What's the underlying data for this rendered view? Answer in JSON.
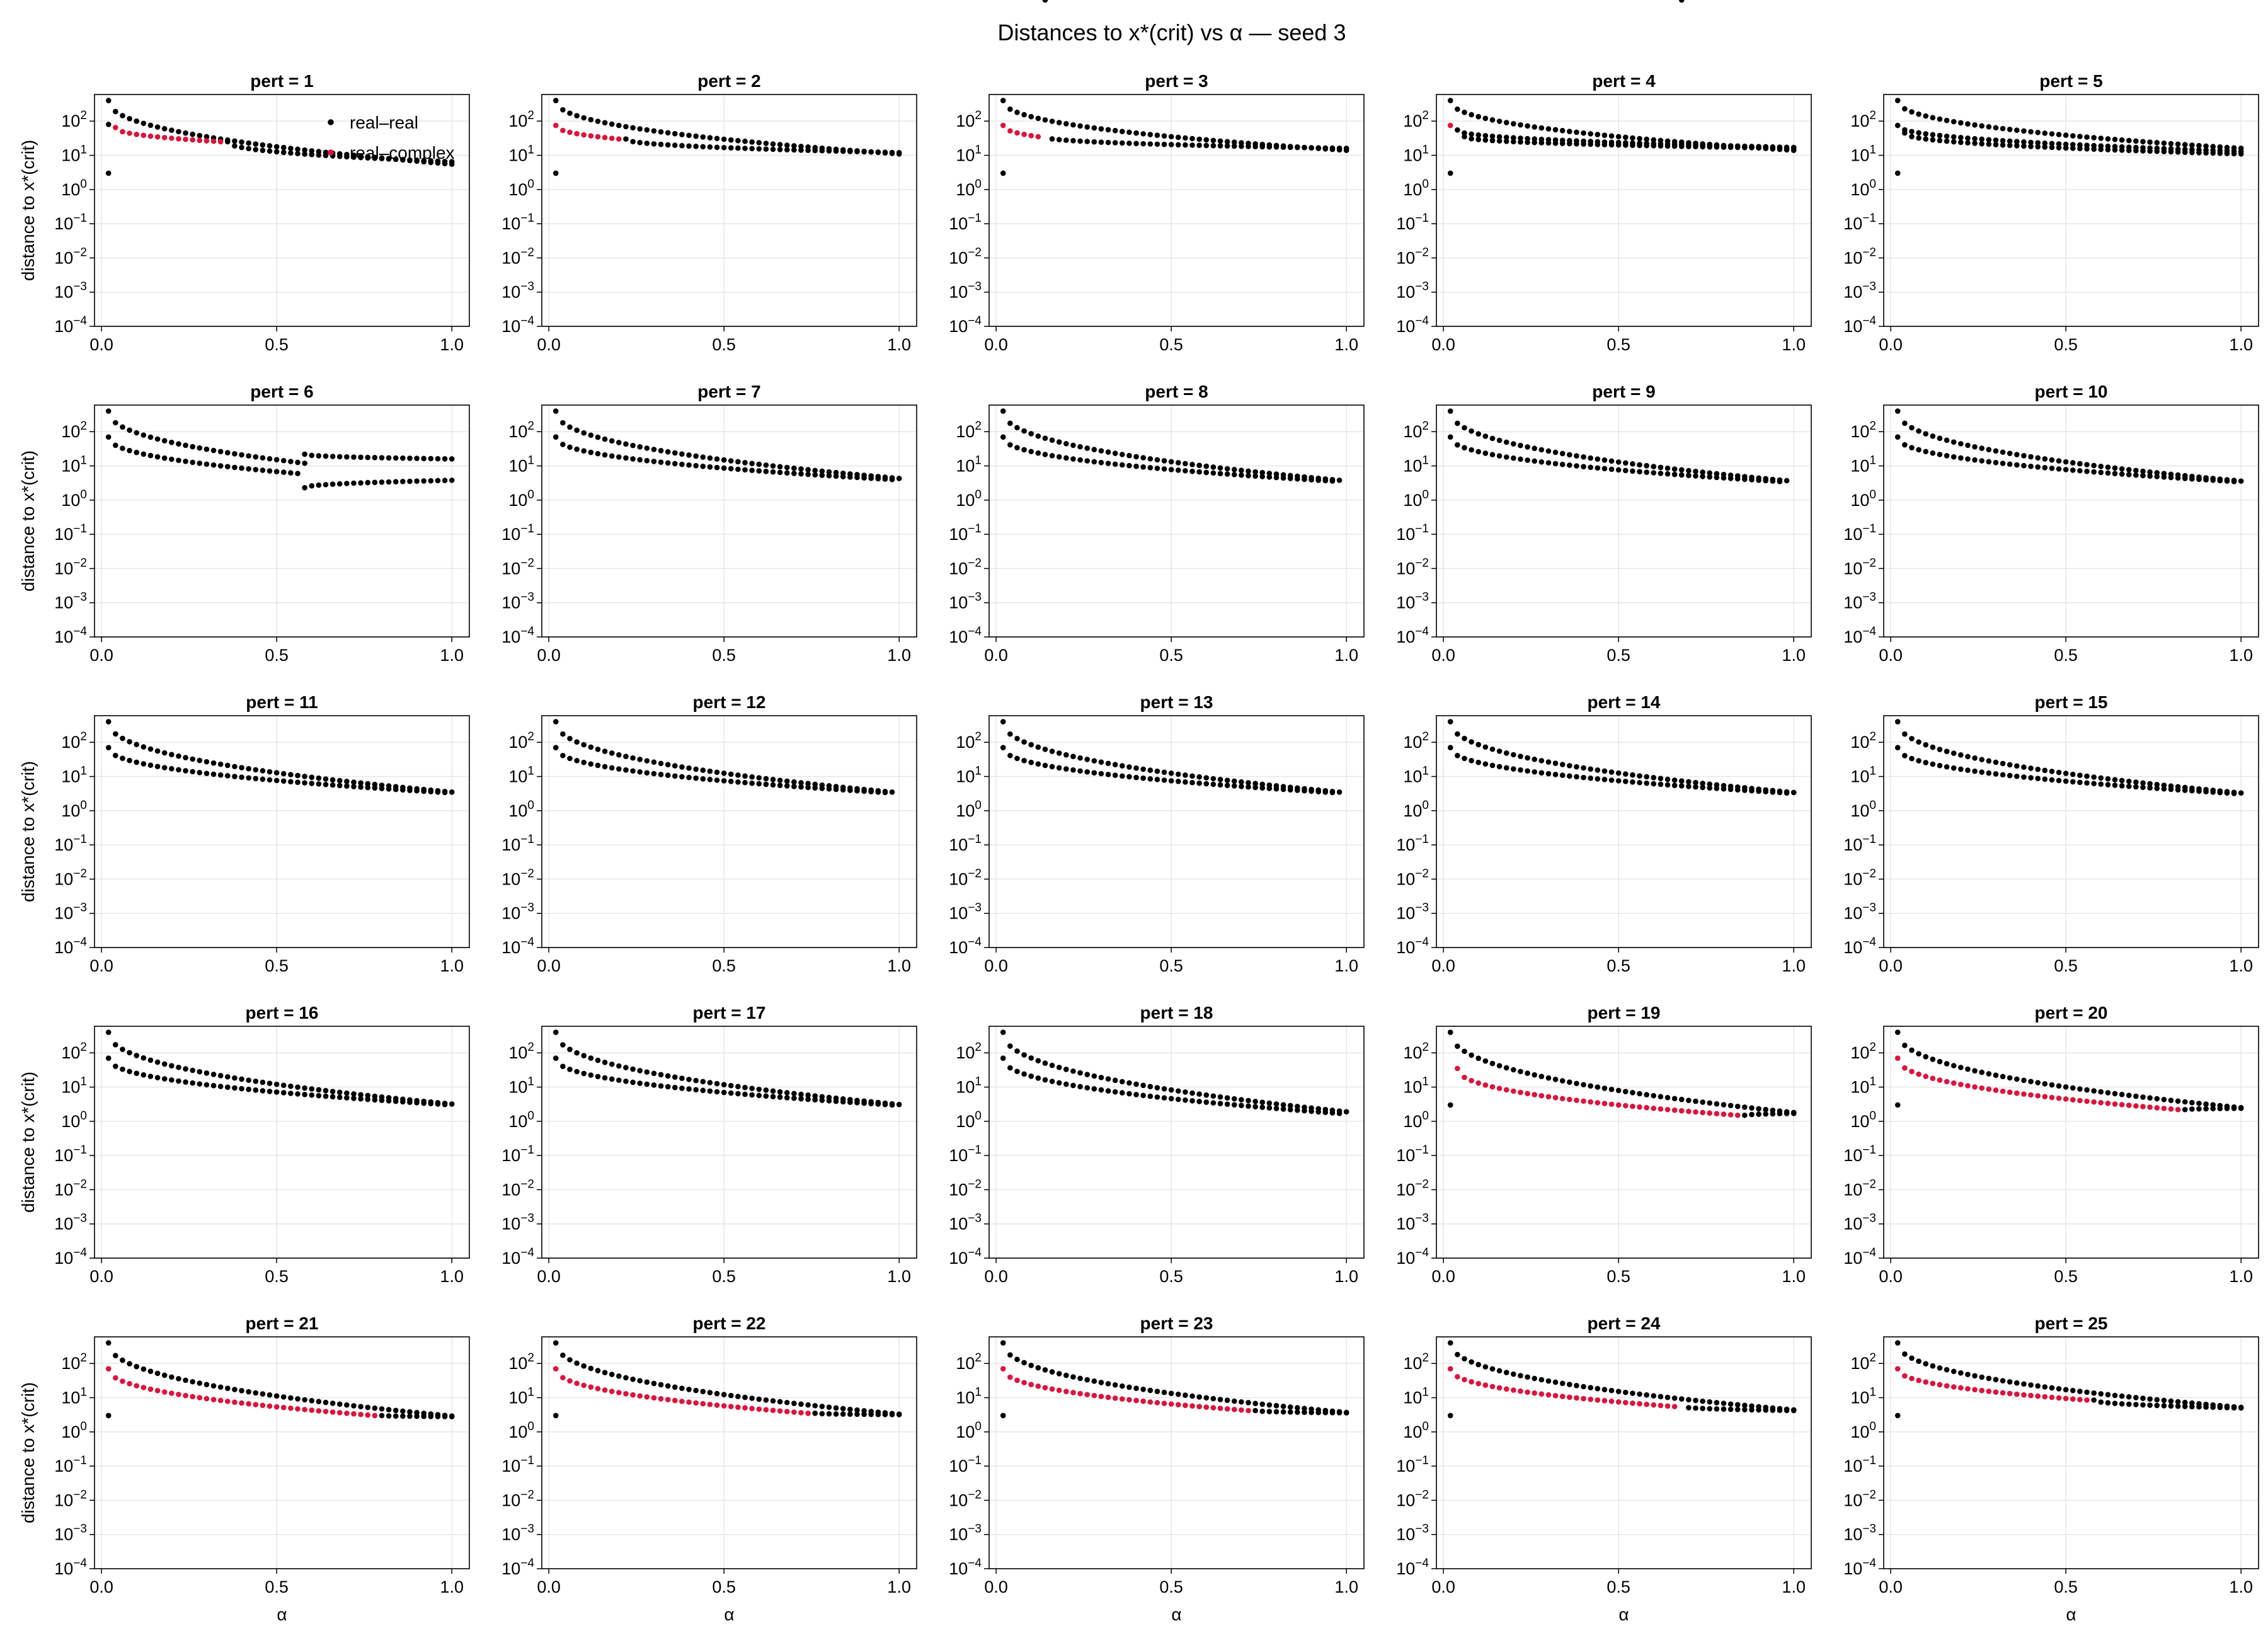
{
  "figure": {
    "title": "Distances to x*(crit) vs α — seed 3"
  },
  "chart_data": {
    "type": "scatter",
    "rows": 5,
    "cols": 5,
    "panel_title_prefix": "pert = ",
    "xlabel": "α",
    "ylabel": "distance to x*(crit)",
    "yscale": "log",
    "xlim": [
      -0.02,
      1.05
    ],
    "ylim": [
      0.0001,
      600
    ],
    "xticks": [
      0.0,
      0.5,
      1.0
    ],
    "xtick_labels": [
      "0.0",
      "0.5",
      "1.0"
    ],
    "ytick_exponents": [
      -4,
      -3,
      -2,
      -1,
      0,
      1,
      2
    ],
    "ytick_base": "10",
    "grid": true,
    "legend": {
      "panel": 0,
      "placement": "top-right",
      "entries": [
        {
          "label": "real–real",
          "color": "#000000"
        },
        {
          "label": "real–complex",
          "color": "#dc143c"
        }
      ]
    },
    "colors": {
      "real_real": "#000000",
      "real_complex": "#dc143c"
    },
    "alpha_sampling": {
      "start": 0.02,
      "end": 1.0,
      "count": 50
    },
    "panels": [
      {
        "pert": 1,
        "series": [
          {
            "name": "real–real",
            "start": 400,
            "end": 5.5,
            "from": 0.02,
            "to": 1.0
          },
          {
            "name": "real–real",
            "start": 80,
            "end": 6.5,
            "from": 0.02,
            "to": 0.02
          },
          {
            "name": "real–complex",
            "start": 65,
            "end": 25,
            "from": 0.04,
            "to": 0.34
          },
          {
            "name": "real–real",
            "start": 25,
            "end": 6.5,
            "from": 0.36,
            "to": 1.0
          },
          {
            "name": "real–real",
            "start": 3,
            "end": 3,
            "from": 0.02,
            "to": 0.02
          }
        ]
      },
      {
        "pert": 2,
        "series": [
          {
            "name": "real–real",
            "start": 400,
            "end": 11,
            "from": 0.02,
            "to": 1.0
          },
          {
            "name": "real–complex",
            "start": 75,
            "end": 30,
            "from": 0.02,
            "to": 0.2
          },
          {
            "name": "real–real",
            "start": 30,
            "end": 12,
            "from": 0.22,
            "to": 1.0
          },
          {
            "name": "real–real",
            "start": 3,
            "end": 3,
            "from": 0.02,
            "to": 0.02
          }
        ]
      },
      {
        "pert": 3,
        "series": [
          {
            "name": "real–real",
            "start": 400,
            "end": 14,
            "from": 0.02,
            "to": 1.0
          },
          {
            "name": "real–complex",
            "start": 75,
            "end": 35,
            "from": 0.02,
            "to": 0.12
          },
          {
            "name": "real–real",
            "start": 35,
            "end": 16,
            "from": 0.14,
            "to": 1.0
          },
          {
            "name": "real–real",
            "start": 3,
            "end": 3,
            "from": 0.02,
            "to": 0.02
          }
        ]
      },
      {
        "pert": 4,
        "series": [
          {
            "name": "real–real",
            "start": 400,
            "end": 14,
            "from": 0.02,
            "to": 1.0
          },
          {
            "name": "real–complex",
            "start": 75,
            "end": 75,
            "from": 0.02,
            "to": 0.02
          },
          {
            "name": "real–real",
            "start": 55,
            "end": 17,
            "from": 0.04,
            "to": 1.0
          },
          {
            "name": "real–real",
            "start": 35,
            "end": 16,
            "from": 0.06,
            "to": 1.0
          },
          {
            "name": "real–real",
            "start": 3,
            "end": 3,
            "from": 0.02,
            "to": 0.02
          }
        ]
      },
      {
        "pert": 5,
        "series": [
          {
            "name": "real–real",
            "start": 400,
            "end": 16,
            "from": 0.02,
            "to": 1.0
          },
          {
            "name": "real–real",
            "start": 75,
            "end": 13,
            "from": 0.02,
            "to": 1.0
          },
          {
            "name": "real–real",
            "start": 45,
            "end": 11,
            "from": 0.04,
            "to": 1.0
          },
          {
            "name": "real–real",
            "start": 3,
            "end": 3,
            "from": 0.02,
            "to": 0.02
          }
        ]
      },
      {
        "pert": 6,
        "series": [
          {
            "name": "real–real",
            "start": 400,
            "end": 12,
            "from": 0.02,
            "to": 0.58
          },
          {
            "name": "real–real",
            "start": 70,
            "end": 6,
            "from": 0.02,
            "to": 0.56
          },
          {
            "name": "real–real",
            "start": 22,
            "end": 16,
            "from": 0.58,
            "to": 1.0
          },
          {
            "name": "real–real",
            "start": 2.3,
            "end": 3.8,
            "from": 0.58,
            "to": 1.0
          }
        ]
      },
      {
        "pert": 7,
        "series": [
          {
            "name": "real–real",
            "start": 400,
            "end": 4.3,
            "from": 0.02,
            "to": 1.0
          },
          {
            "name": "real–real",
            "start": 70,
            "end": 4.0,
            "from": 0.02,
            "to": 0.98
          }
        ]
      },
      {
        "pert": 8,
        "series": [
          {
            "name": "real–real",
            "start": 400,
            "end": 3.8,
            "from": 0.02,
            "to": 0.98
          },
          {
            "name": "real–real",
            "start": 70,
            "end": 3.6,
            "from": 0.02,
            "to": 0.96
          }
        ]
      },
      {
        "pert": 9,
        "series": [
          {
            "name": "real–real",
            "start": 400,
            "end": 3.7,
            "from": 0.02,
            "to": 0.98
          },
          {
            "name": "real–real",
            "start": 70,
            "end": 3.5,
            "from": 0.02,
            "to": 0.96
          }
        ]
      },
      {
        "pert": 10,
        "series": [
          {
            "name": "real–real",
            "start": 400,
            "end": 3.6,
            "from": 0.02,
            "to": 1.0
          },
          {
            "name": "real–real",
            "start": 70,
            "end": 3.5,
            "from": 0.02,
            "to": 0.98
          }
        ]
      },
      {
        "pert": 11,
        "series": [
          {
            "name": "real–real",
            "start": 400,
            "end": 3.5,
            "from": 0.02,
            "to": 1.0
          },
          {
            "name": "real–real",
            "start": 70,
            "end": 3.4,
            "from": 0.02,
            "to": 0.98
          }
        ]
      },
      {
        "pert": 12,
        "series": [
          {
            "name": "real–real",
            "start": 400,
            "end": 3.5,
            "from": 0.02,
            "to": 0.98
          },
          {
            "name": "real–real",
            "start": 70,
            "end": 3.4,
            "from": 0.02,
            "to": 0.96
          }
        ]
      },
      {
        "pert": 13,
        "series": [
          {
            "name": "real–real",
            "start": 400,
            "end": 3.5,
            "from": 0.02,
            "to": 0.98
          },
          {
            "name": "real–real",
            "start": 70,
            "end": 3.4,
            "from": 0.02,
            "to": 0.96
          }
        ]
      },
      {
        "pert": 14,
        "series": [
          {
            "name": "real–real",
            "start": 400,
            "end": 3.4,
            "from": 0.02,
            "to": 1.0
          },
          {
            "name": "real–real",
            "start": 70,
            "end": 3.3,
            "from": 0.02,
            "to": 0.98
          }
        ]
      },
      {
        "pert": 15,
        "series": [
          {
            "name": "real–real",
            "start": 400,
            "end": 3.3,
            "from": 0.02,
            "to": 1.0
          },
          {
            "name": "real–real",
            "start": 70,
            "end": 3.2,
            "from": 0.02,
            "to": 0.98
          }
        ]
      },
      {
        "pert": 16,
        "series": [
          {
            "name": "real–real",
            "start": 400,
            "end": 3.2,
            "from": 0.02,
            "to": 1.0
          },
          {
            "name": "real–real",
            "start": 70,
            "end": 3.1,
            "from": 0.02,
            "to": 0.98
          }
        ]
      },
      {
        "pert": 17,
        "series": [
          {
            "name": "real–real",
            "start": 400,
            "end": 3.1,
            "from": 0.02,
            "to": 1.0
          },
          {
            "name": "real–real",
            "start": 70,
            "end": 3.0,
            "from": 0.02,
            "to": 0.98
          }
        ]
      },
      {
        "pert": 18,
        "series": [
          {
            "name": "real–real",
            "start": 400,
            "end": 1.9,
            "from": 0.02,
            "to": 1.0
          },
          {
            "name": "real–real",
            "start": 70,
            "end": 1.7,
            "from": 0.02,
            "to": 0.98
          }
        ]
      },
      {
        "pert": 19,
        "series": [
          {
            "name": "real–real",
            "start": 400,
            "end": 1.8,
            "from": 0.02,
            "to": 1.0
          },
          {
            "name": "real–complex",
            "start": 35,
            "end": 1.5,
            "from": 0.04,
            "to": 0.84
          },
          {
            "name": "real–real",
            "start": 1.5,
            "end": 1.7,
            "from": 0.86,
            "to": 1.0
          },
          {
            "name": "real–real",
            "start": 3,
            "end": 3,
            "from": 0.02,
            "to": 0.02
          }
        ]
      },
      {
        "pert": 20,
        "series": [
          {
            "name": "real–real",
            "start": 400,
            "end": 2.5,
            "from": 0.02,
            "to": 1.0
          },
          {
            "name": "real–complex",
            "start": 70,
            "end": 2.2,
            "from": 0.02,
            "to": 0.82
          },
          {
            "name": "real–real",
            "start": 2.2,
            "end": 2.4,
            "from": 0.84,
            "to": 1.0
          },
          {
            "name": "real–real",
            "start": 3,
            "end": 3,
            "from": 0.02,
            "to": 0.02
          }
        ]
      },
      {
        "pert": 21,
        "series": [
          {
            "name": "real–real",
            "start": 400,
            "end": 2.9,
            "from": 0.02,
            "to": 1.0
          },
          {
            "name": "real–complex",
            "start": 70,
            "end": 3.0,
            "from": 0.02,
            "to": 0.78
          },
          {
            "name": "real–real",
            "start": 3.0,
            "end": 2.8,
            "from": 0.8,
            "to": 1.0
          },
          {
            "name": "real–real",
            "start": 3,
            "end": 3,
            "from": 0.02,
            "to": 0.02
          }
        ]
      },
      {
        "pert": 22,
        "series": [
          {
            "name": "real–real",
            "start": 400,
            "end": 3.3,
            "from": 0.02,
            "to": 1.0
          },
          {
            "name": "real–complex",
            "start": 70,
            "end": 3.5,
            "from": 0.02,
            "to": 0.74
          },
          {
            "name": "real–real",
            "start": 3.5,
            "end": 3.2,
            "from": 0.76,
            "to": 1.0
          },
          {
            "name": "real–real",
            "start": 3,
            "end": 3,
            "from": 0.02,
            "to": 0.02
          }
        ]
      },
      {
        "pert": 23,
        "series": [
          {
            "name": "real–real",
            "start": 400,
            "end": 3.7,
            "from": 0.02,
            "to": 1.0
          },
          {
            "name": "real–complex",
            "start": 70,
            "end": 4.2,
            "from": 0.02,
            "to": 0.72
          },
          {
            "name": "real–real",
            "start": 4.2,
            "end": 3.6,
            "from": 0.74,
            "to": 1.0
          },
          {
            "name": "real–real",
            "start": 3,
            "end": 3,
            "from": 0.02,
            "to": 0.02
          }
        ]
      },
      {
        "pert": 24,
        "series": [
          {
            "name": "real–real",
            "start": 400,
            "end": 4.4,
            "from": 0.02,
            "to": 1.0
          },
          {
            "name": "real–complex",
            "start": 70,
            "end": 5.5,
            "from": 0.02,
            "to": 0.66
          },
          {
            "name": "real–real",
            "start": 5.5,
            "end": 4.2,
            "from": 0.68,
            "to": 1.0
          },
          {
            "name": "real–real",
            "start": 3,
            "end": 3,
            "from": 0.02,
            "to": 0.02
          }
        ]
      },
      {
        "pert": 25,
        "series": [
          {
            "name": "real–real",
            "start": 400,
            "end": 5.2,
            "from": 0.02,
            "to": 1.0
          },
          {
            "name": "real–complex",
            "start": 70,
            "end": 8.5,
            "from": 0.02,
            "to": 0.56
          },
          {
            "name": "real–real",
            "start": 8.5,
            "end": 5.0,
            "from": 0.58,
            "to": 1.0
          },
          {
            "name": "real–real",
            "start": 3,
            "end": 3,
            "from": 0.02,
            "to": 0.02
          }
        ]
      }
    ]
  }
}
